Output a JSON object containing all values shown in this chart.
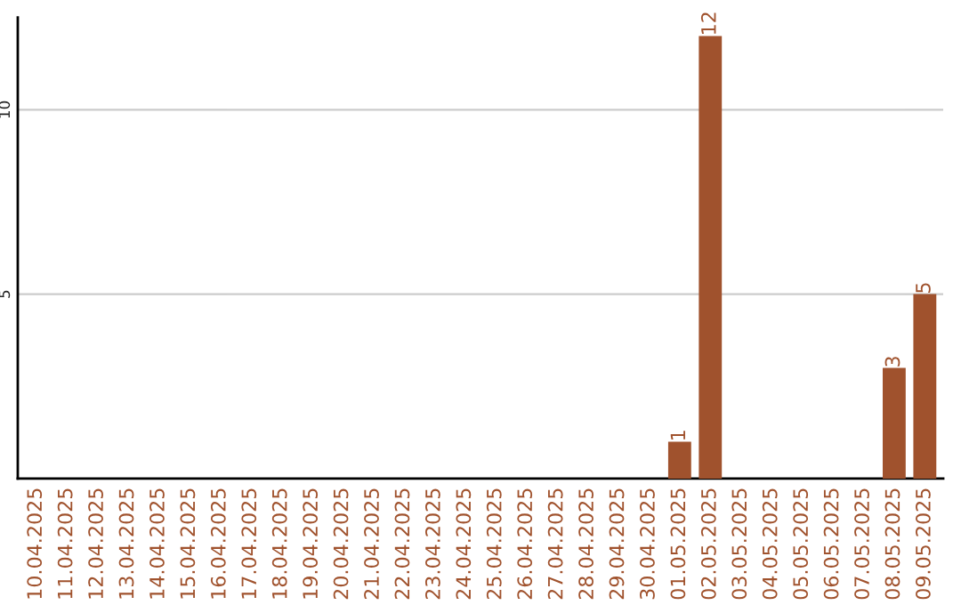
{
  "chart_data": {
    "type": "bar",
    "categories": [
      "10.04.2025",
      "11.04.2025",
      "12.04.2025",
      "13.04.2025",
      "14.04.2025",
      "15.04.2025",
      "16.04.2025",
      "17.04.2025",
      "18.04.2025",
      "19.04.2025",
      "20.04.2025",
      "21.04.2025",
      "22.04.2025",
      "23.04.2025",
      "24.04.2025",
      "25.04.2025",
      "26.04.2025",
      "27.04.2025",
      "28.04.2025",
      "29.04.2025",
      "30.04.2025",
      "01.05.2025",
      "02.05.2025",
      "03.05.2025",
      "04.05.2025",
      "05.05.2025",
      "06.05.2025",
      "07.05.2025",
      "08.05.2025",
      "09.05.2025"
    ],
    "values": [
      0,
      0,
      0,
      0,
      0,
      0,
      0,
      0,
      0,
      0,
      0,
      0,
      0,
      0,
      0,
      0,
      0,
      0,
      0,
      0,
      0,
      1,
      12,
      0,
      0,
      0,
      0,
      0,
      3,
      5
    ],
    "value_labels": [
      null,
      null,
      null,
      null,
      null,
      null,
      null,
      null,
      null,
      null,
      null,
      null,
      null,
      null,
      null,
      null,
      null,
      null,
      null,
      null,
      null,
      "1",
      "12",
      null,
      null,
      null,
      null,
      null,
      "3",
      "5"
    ],
    "color": "#a0522d",
    "ylim": [
      0,
      12.5
    ],
    "yticks": [
      5,
      10
    ],
    "grid": "y"
  }
}
